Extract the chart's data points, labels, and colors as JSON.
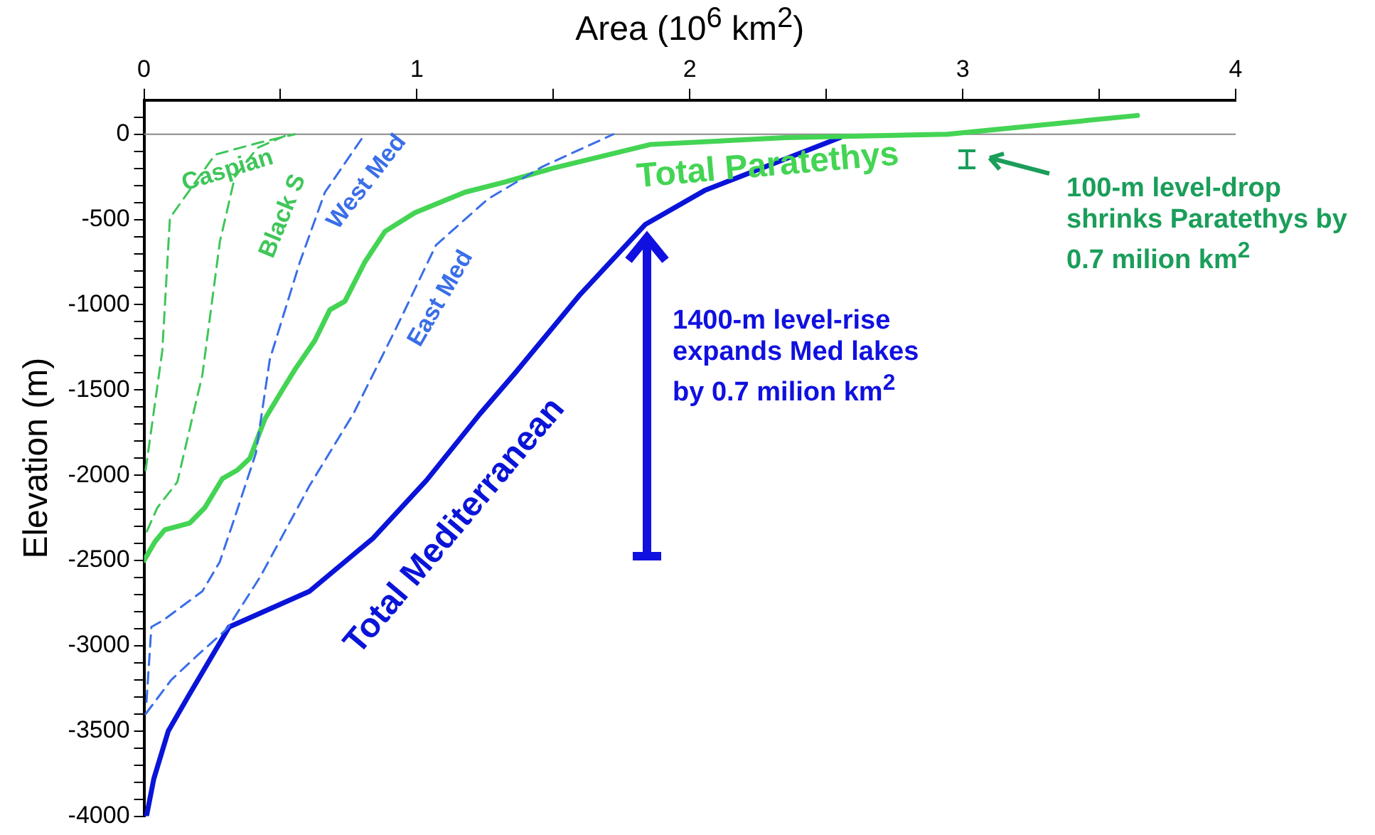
{
  "chart_data": {
    "type": "line",
    "xlabel": "Area (10$^{6}$ km$^{2}$)",
    "ylabel": "Elevation (m)",
    "xlim": [
      0,
      4
    ],
    "xticks": [
      0,
      {
        "value": 0.5,
        "label": null
      },
      1,
      {
        "value": 1.5,
        "label": null
      },
      2,
      {
        "value": 2.5,
        "label": null
      },
      3,
      {
        "value": 3.5,
        "label": null
      },
      4
    ],
    "ylim": [
      -4000,
      200
    ],
    "yticks": [
      -4000,
      {
        "value": -3900,
        "label": null
      },
      {
        "value": -3800,
        "label": null
      },
      {
        "value": -3700,
        "label": null
      },
      {
        "value": -3600,
        "label": null
      },
      -3500,
      {
        "value": -3400,
        "label": null
      },
      {
        "value": -3300,
        "label": null
      },
      {
        "value": -3200,
        "label": null
      },
      {
        "value": -3100,
        "label": null
      },
      -3000,
      {
        "value": -2900,
        "label": null
      },
      {
        "value": -2800,
        "label": null
      },
      {
        "value": -2700,
        "label": null
      },
      {
        "value": -2600,
        "label": null
      },
      -2500,
      {
        "value": -2400,
        "label": null
      },
      {
        "value": -2300,
        "label": null
      },
      {
        "value": -2200,
        "label": null
      },
      {
        "value": -2100,
        "label": null
      },
      -2000,
      {
        "value": -1900,
        "label": null
      },
      {
        "value": -1800,
        "label": null
      },
      {
        "value": -1700,
        "label": null
      },
      {
        "value": -1600,
        "label": null
      },
      -1500,
      {
        "value": -1400,
        "label": null
      },
      {
        "value": -1300,
        "label": null
      },
      {
        "value": -1200,
        "label": null
      },
      {
        "value": -1100,
        "label": null
      },
      -1000,
      {
        "value": -900,
        "label": null
      },
      {
        "value": -800,
        "label": null
      },
      {
        "value": -700,
        "label": null
      },
      {
        "value": -600,
        "label": null
      },
      -500,
      {
        "value": -400,
        "label": null
      },
      {
        "value": -300,
        "label": null
      },
      {
        "value": -200,
        "label": null
      },
      {
        "value": -100,
        "label": null
      },
      0,
      {
        "value": 100,
        "label": null
      }
    ],
    "grid": false,
    "ref_lines": [
      {
        "axis": "y",
        "value": 0,
        "label": null,
        "color": "#888888"
      }
    ],
    "series": [
      {
        "name": "Caspian",
        "color": "#3fc65a",
        "line_style": "dashed",
        "x": [
          0.006,
          0.067,
          0.095,
          0.26,
          0.42,
          0.553
        ],
        "values": [
          -1970,
          -1270,
          -490,
          -120,
          -50,
          0
        ]
      },
      {
        "name": "Black S",
        "color": "#3fc65a",
        "line_style": "dashed",
        "x": [
          0.01,
          0.049,
          0.122,
          0.214,
          0.278,
          0.333,
          0.415,
          0.516
        ],
        "values": [
          -2330,
          -2190,
          -2040,
          -1410,
          -630,
          -250,
          -80,
          -10
        ]
      },
      {
        "name": "West Med",
        "color": "#3a6ee8",
        "line_style": "dashed",
        "x": [
          0.009,
          0.027,
          0.071,
          0.214,
          0.277,
          0.33,
          0.41,
          0.461,
          0.571,
          0.663,
          0.809
        ],
        "values": [
          -3330,
          -2890,
          -2850,
          -2680,
          -2510,
          -2260,
          -1870,
          -1320,
          -750,
          -340,
          0
        ]
      },
      {
        "name": "East Med",
        "color": "#3a6ee8",
        "line_style": "dashed",
        "x": [
          0.006,
          0.1,
          0.2,
          0.305,
          0.428,
          0.607,
          0.767,
          0.92,
          1.07,
          1.26,
          1.46,
          1.72
        ],
        "values": [
          -3400,
          -3200,
          -3050,
          -2900,
          -2590,
          -2060,
          -1640,
          -1150,
          -650,
          -380,
          -190,
          0
        ]
      },
      {
        "name": "Total Paratethys",
        "color": "#44d454",
        "line_style": "solid",
        "x": [
          0,
          0.04,
          0.076,
          0.168,
          0.223,
          0.287,
          0.342,
          0.388,
          0.443,
          0.507,
          0.553,
          0.626,
          0.681,
          0.736,
          0.809,
          0.883,
          0.993,
          1.176,
          1.323,
          1.497,
          1.856,
          2.35,
          2.944,
          3.64
        ],
        "values": [
          -2500,
          -2390,
          -2320,
          -2280,
          -2190,
          -2020,
          -1970,
          -1900,
          -1670,
          -1500,
          -1380,
          -1210,
          -1030,
          -980,
          -750,
          -570,
          -460,
          -340,
          -280,
          -200,
          -60,
          -20,
          0,
          110
        ]
      },
      {
        "name": "Total Mediterranean",
        "color": "#0a14d8",
        "line_style": "solid",
        "x": [
          0.009,
          0.036,
          0.089,
          0.161,
          0.312,
          0.607,
          0.839,
          1.035,
          1.231,
          1.36,
          1.598,
          1.836,
          2.054,
          2.55
        ],
        "values": [
          -4000,
          -3780,
          -3500,
          -3300,
          -2890,
          -2680,
          -2370,
          -2030,
          -1640,
          -1400,
          -940,
          -530,
          -330,
          -20
        ]
      }
    ],
    "annotations": [
      "1400-m level-rise expands Med lakes by 0.7 milion km$^{2}$",
      "100-m level-drop shrinks Paratethys by 0.7 milion km$^{2}$"
    ]
  }
}
